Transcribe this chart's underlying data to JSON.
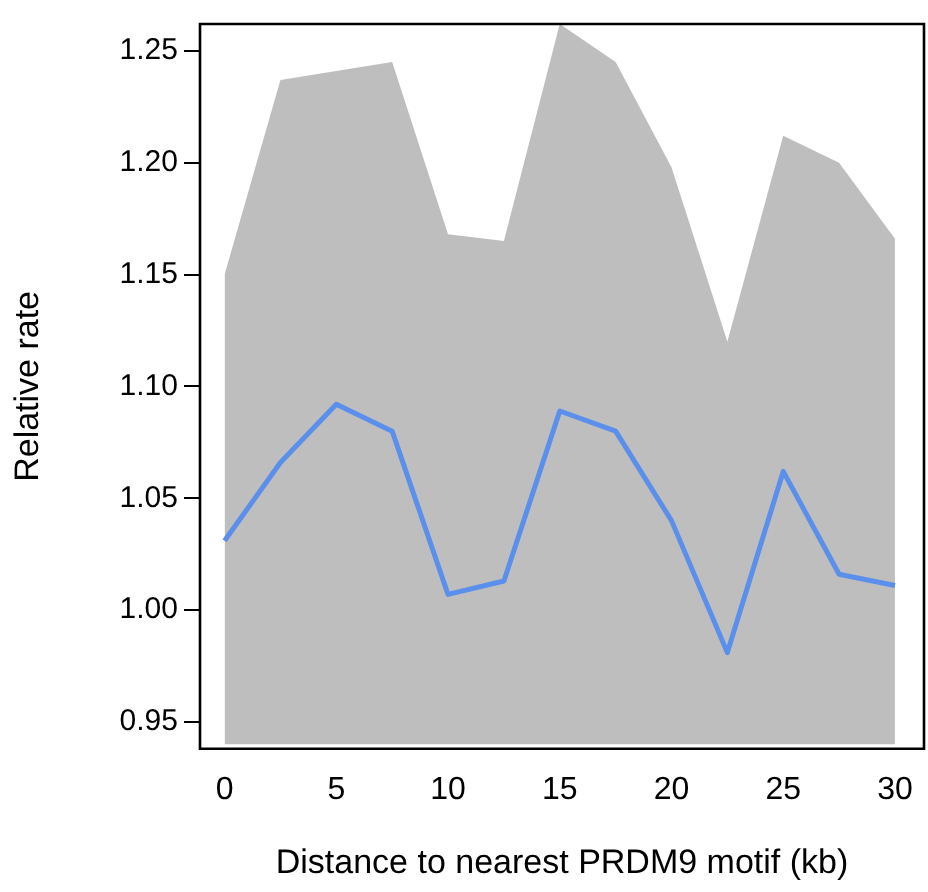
{
  "chart_data": {
    "type": "line",
    "xlabel": "Distance to nearest PRDM9 motif (kb)",
    "ylabel": "Relative rate",
    "x": [
      0,
      2.5,
      5,
      7.5,
      10,
      12.5,
      15,
      17.5,
      20,
      22.5,
      25,
      27.5,
      30
    ],
    "xlim": [
      -1.1,
      31.3
    ],
    "xticks": [
      0,
      5,
      10,
      15,
      20,
      25,
      30
    ],
    "ylim": [
      0.938,
      1.262
    ],
    "yticks": [
      0.95,
      {
        "value": 1.0,
        "label": "1.00"
      },
      1.05,
      {
        "value": 1.1,
        "label": "1.10"
      },
      1.15,
      {
        "value": 1.2,
        "label": "1.20"
      },
      1.25
    ],
    "grid": false,
    "legend": false,
    "marker": "none",
    "line_style": "solid",
    "series": [
      {
        "color": "#bebebe",
        "values": [
          null,
          null,
          null,
          null,
          null,
          null,
          null,
          null,
          null,
          null,
          null,
          null,
          null
        ],
        "lower": [
          0.94,
          0.94,
          0.94,
          0.94,
          0.94,
          0.94,
          0.94,
          0.94,
          0.94,
          0.94,
          0.94,
          0.94,
          0.94
        ],
        "upper": [
          1.15,
          1.237,
          1.241,
          1.245,
          1.168,
          1.165,
          1.262,
          1.245,
          1.198,
          1.12,
          1.212,
          1.2,
          1.166
        ]
      },
      {
        "color": "#5b8fec",
        "values": [
          1.031,
          1.066,
          1.092,
          1.08,
          1.007,
          1.013,
          1.089,
          1.08,
          1.04,
          0.981,
          1.062,
          1.016,
          1.011
        ]
      }
    ]
  }
}
